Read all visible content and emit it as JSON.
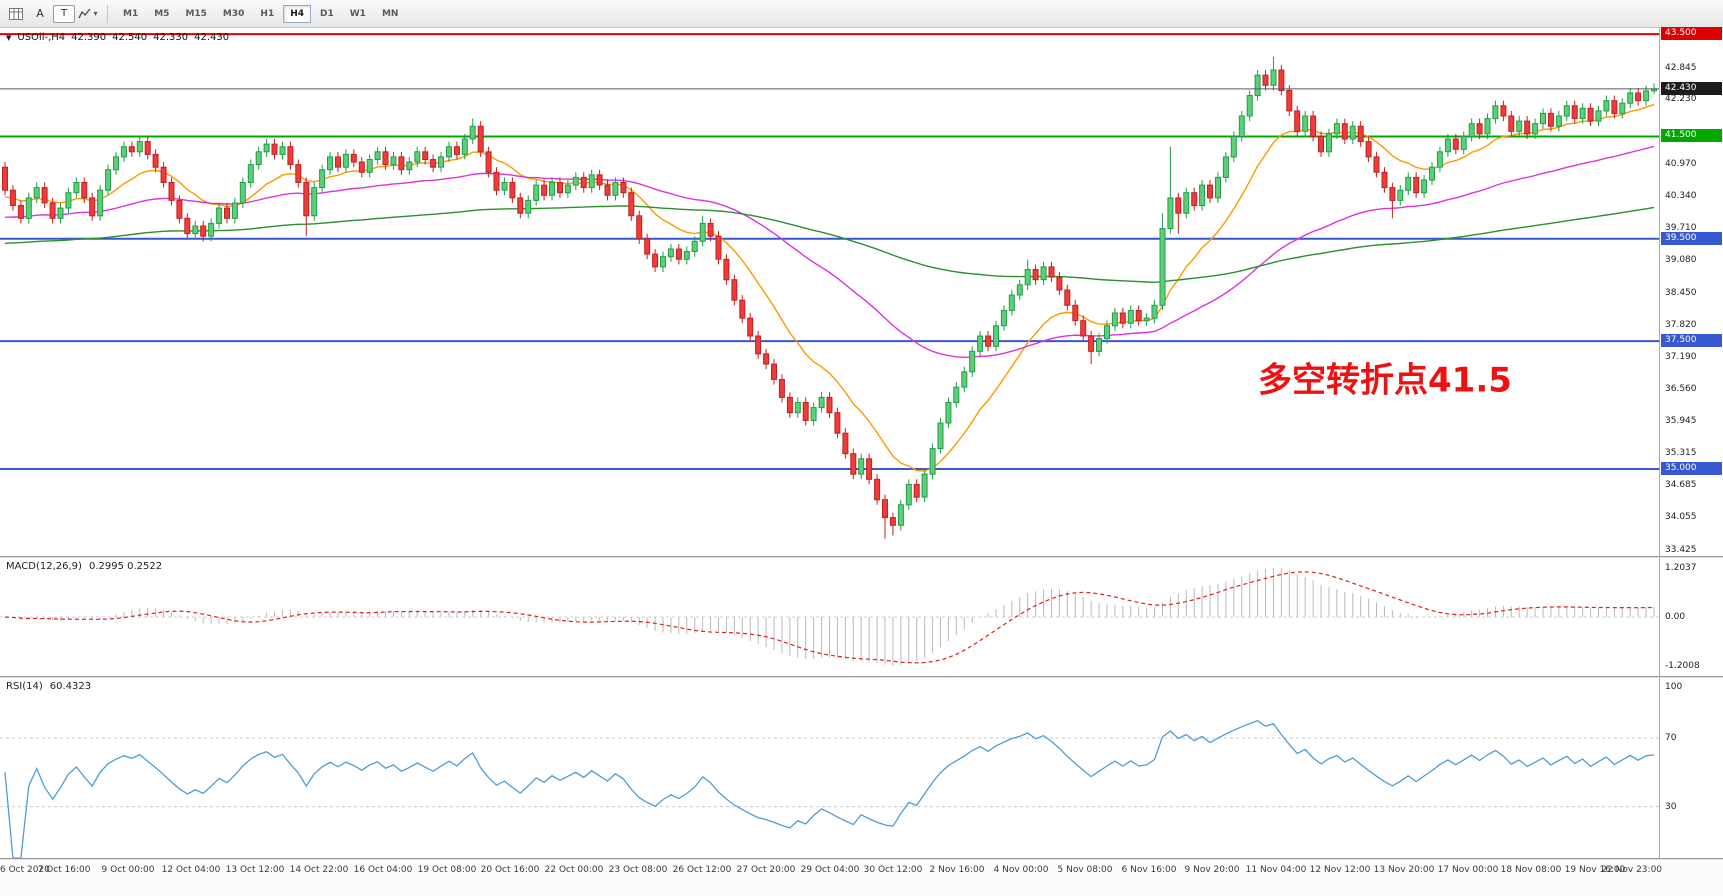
{
  "toolbar": {
    "text_a": "A",
    "text_t": "T",
    "timeframes": [
      {
        "label": "M1",
        "active": false
      },
      {
        "label": "M5",
        "active": false
      },
      {
        "label": "M15",
        "active": false
      },
      {
        "label": "M30",
        "active": false
      },
      {
        "label": "H1",
        "active": false
      },
      {
        "label": "H4",
        "active": true
      },
      {
        "label": "D1",
        "active": false
      },
      {
        "label": "W1",
        "active": false
      },
      {
        "label": "MN",
        "active": false
      }
    ]
  },
  "chart_header": {
    "symbol": "USOil-,H4",
    "open": "42.390",
    "high": "42.540",
    "low": "42.330",
    "close": "42.430"
  },
  "chart_data": {
    "type": "candlestick",
    "symbol": "USOil-",
    "timeframe": "H4",
    "last_ohlc": {
      "open": 42.39,
      "high": 42.54,
      "low": 42.33,
      "close": 42.43
    },
    "up_color": "#5fce78",
    "up_stroke": "#1f9e46",
    "down_color": "#ee3b3b",
    "down_stroke": "#c32020",
    "first_open": 40.9,
    "default_wick": 0.1,
    "closes": [
      40.45,
      40.15,
      39.9,
      40.3,
      40.5,
      40.2,
      39.9,
      40.1,
      40.4,
      40.6,
      40.3,
      39.95,
      40.45,
      40.85,
      41.1,
      41.3,
      41.2,
      41.4,
      41.15,
      40.9,
      40.6,
      40.25,
      39.9,
      39.6,
      39.75,
      39.55,
      39.8,
      40.1,
      39.9,
      40.2,
      40.6,
      40.95,
      41.2,
      41.35,
      41.15,
      41.3,
      40.95,
      40.6,
      39.95,
      40.5,
      40.85,
      41.1,
      40.9,
      41.15,
      41.0,
      40.8,
      41.05,
      41.2,
      40.95,
      41.1,
      40.85,
      41.0,
      41.2,
      41.05,
      40.9,
      41.1,
      41.3,
      41.15,
      41.45,
      41.7,
      41.2,
      40.8,
      40.45,
      40.6,
      40.3,
      40.0,
      40.25,
      40.55,
      40.35,
      40.6,
      40.4,
      40.55,
      40.7,
      40.5,
      40.75,
      40.55,
      40.35,
      40.6,
      40.4,
      39.95,
      39.5,
      39.2,
      38.95,
      39.15,
      39.3,
      39.1,
      39.25,
      39.45,
      39.8,
      39.55,
      39.1,
      38.7,
      38.3,
      37.95,
      37.6,
      37.25,
      37.05,
      36.75,
      36.4,
      36.1,
      36.3,
      35.95,
      36.2,
      36.4,
      36.1,
      35.7,
      35.3,
      34.9,
      35.2,
      34.8,
      34.4,
      34.05,
      33.9,
      34.3,
      34.7,
      34.45,
      34.9,
      35.4,
      35.9,
      36.3,
      36.6,
      36.9,
      37.3,
      37.6,
      37.4,
      37.8,
      38.1,
      38.4,
      38.6,
      38.9,
      38.7,
      38.95,
      38.75,
      38.5,
      38.2,
      37.9,
      37.6,
      37.3,
      37.55,
      37.8,
      38.05,
      37.85,
      38.1,
      37.9,
      37.95,
      38.2,
      39.7,
      40.3,
      40.0,
      40.4,
      40.15,
      40.55,
      40.3,
      40.7,
      41.1,
      41.5,
      41.9,
      42.3,
      42.7,
      42.5,
      42.8,
      42.4,
      42.0,
      41.6,
      41.9,
      41.5,
      41.2,
      41.55,
      41.75,
      41.45,
      41.7,
      41.4,
      41.1,
      40.8,
      40.5,
      40.25,
      40.45,
      40.7,
      40.4,
      40.65,
      40.9,
      41.2,
      41.45,
      41.25,
      41.5,
      41.75,
      41.55,
      41.85,
      42.1,
      41.9,
      41.6,
      41.8,
      41.55,
      41.75,
      41.95,
      41.7,
      41.9,
      42.1,
      41.85,
      42.05,
      41.8,
      42.0,
      42.2,
      41.95,
      42.15,
      42.35,
      42.2,
      42.39,
      42.43
    ],
    "wick_overrides": [
      {
        "i": 38,
        "low": 39.55
      },
      {
        "i": 59,
        "high": 41.85
      },
      {
        "i": 88,
        "high": 39.95
      },
      {
        "i": 111,
        "low": 33.64
      },
      {
        "i": 112,
        "low": 33.7
      },
      {
        "i": 113,
        "low": 33.8
      },
      {
        "i": 129,
        "high": 39.1
      },
      {
        "i": 137,
        "low": 37.05
      },
      {
        "i": 146,
        "high": 40.0
      },
      {
        "i": 147,
        "high": 41.3
      },
      {
        "i": 148,
        "low": 39.6
      },
      {
        "i": 160,
        "high": 43.06
      },
      {
        "i": 175,
        "low": 39.9
      },
      {
        "i": 208,
        "high": 42.54,
        "low": 42.33
      }
    ],
    "y_axis": {
      "range": [
        33.3,
        43.62
      ],
      "ticks": [
        "42.845",
        "42.230",
        "40.970",
        "40.340",
        "39.710",
        "39.080",
        "38.450",
        "37.820",
        "37.190",
        "36.560",
        "35.945",
        "35.315",
        "34.685",
        "34.055",
        "33.425"
      ],
      "tags": [
        {
          "label": "43.500",
          "price": 43.5,
          "color": "#dd0000"
        },
        {
          "label": "42.430",
          "price": 42.43,
          "color": "#1c1c1c"
        },
        {
          "label": "41.500",
          "price": 41.5,
          "color": "#00a800"
        },
        {
          "label": "39.500",
          "price": 39.5,
          "color": "#3757d3"
        },
        {
          "label": "37.500",
          "price": 37.5,
          "color": "#3757d3"
        },
        {
          "label": "35.000",
          "price": 35.0,
          "color": "#3757d3"
        }
      ]
    },
    "levels": [
      {
        "price": 43.5,
        "color": "#dd0000",
        "width": 2
      },
      {
        "price": 41.5,
        "color": "#00a800",
        "width": 2
      },
      {
        "price": 39.5,
        "color": "#3757d3",
        "width": 2
      },
      {
        "price": 37.5,
        "color": "#3757d3",
        "width": 2
      },
      {
        "price": 35.0,
        "color": "#3757d3",
        "width": 2
      }
    ],
    "bid": {
      "price": 42.43,
      "label": "42.430",
      "line_color": "#56566e"
    },
    "moving_averages": [
      {
        "name": "ma-fast-line",
        "period": 13,
        "seed": 40.3,
        "color": "#ff9900"
      },
      {
        "name": "ma-mid-line",
        "period": 55,
        "seed": 39.9,
        "color": "#dd33dd"
      },
      {
        "name": "ma-slow-line",
        "period": 180,
        "seed": 39.4,
        "color": "#2d8f2d"
      }
    ],
    "indicators": [
      {
        "id": "macd",
        "label": "MACD(12,26,9)",
        "values_label": "0.2995 0.2522",
        "fast": 12,
        "slow": 26,
        "signal": 9,
        "range": [
          -1.45,
          1.45
        ],
        "scale_labels": [
          {
            "label": "1.2037",
            "value": 1.2037
          },
          {
            "label": "0.00",
            "value": 0
          },
          {
            "label": "-1.2008",
            "value": -1.2008
          }
        ],
        "hist_color": "#b9b9b9",
        "signal_color": "#dd2222"
      },
      {
        "id": "rsi",
        "label": "RSI(14)",
        "values_label": "60.4323",
        "period": 14,
        "range": [
          0,
          105
        ],
        "levels": [
          70,
          30
        ],
        "scale_labels": [
          {
            "label": "100",
            "value": 100
          },
          {
            "label": "70",
            "value": 70
          },
          {
            "label": "30",
            "value": 30
          }
        ],
        "line_color": "#4f9bd9"
      }
    ],
    "annotation": {
      "text": "多空转折点41.5",
      "color": "#ee1111",
      "x_index": 158,
      "price": 36.8,
      "font_size": 34,
      "bold": true
    },
    "x_labels": [
      "6 Oct 2020",
      "7 Oct 16:00",
      "9 Oct 00:00",
      "12 Oct 04:00",
      "13 Oct 12:00",
      "14 Oct 22:00",
      "16 Oct 04:00",
      "19 Oct 08:00",
      "20 Oct 16:00",
      "22 Oct 00:00",
      "23 Oct 08:00",
      "26 Oct 12:00",
      "27 Oct 20:00",
      "29 Oct 04:00",
      "30 Oct 12:00",
      "2 Nov 16:00",
      "4 Nov 00:00",
      "5 Nov 08:00",
      "6 Nov 16:00",
      "9 Nov 20:00",
      "11 Nov 04:00",
      "12 Nov 12:00",
      "13 Nov 20:00",
      "17 Nov 00:00",
      "18 Nov 08:00",
      "19 Nov 16:00",
      "22 Nov 23:00"
    ]
  }
}
